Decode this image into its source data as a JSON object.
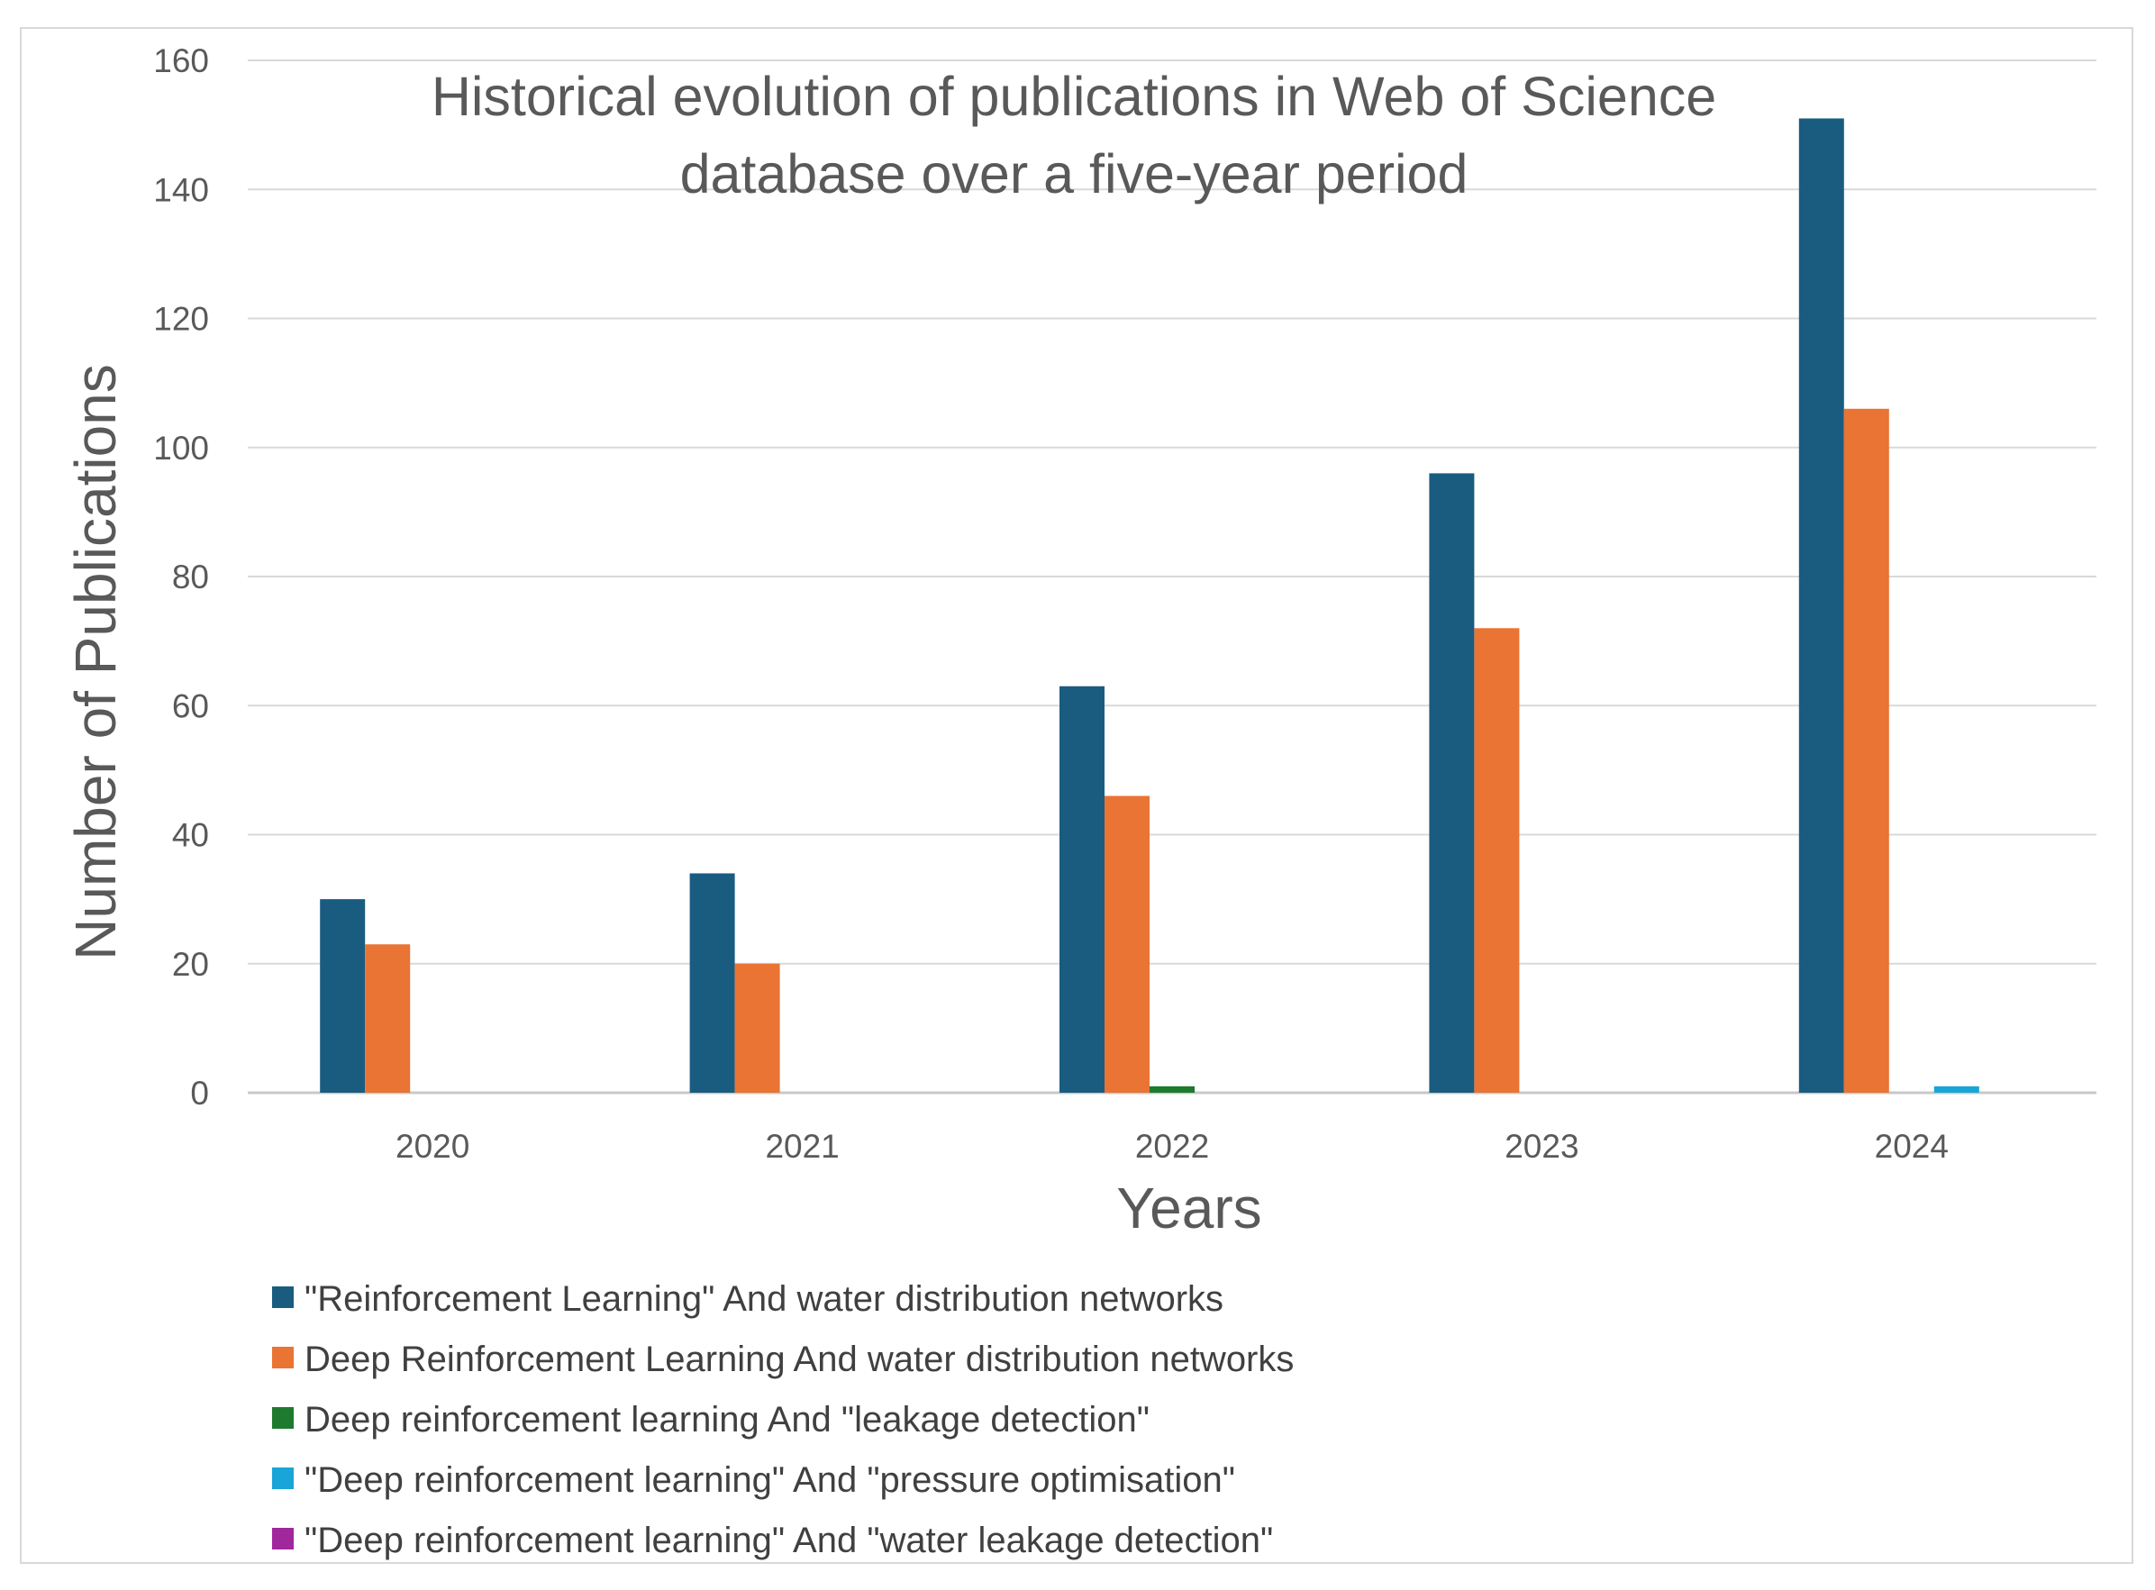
{
  "chart_data": {
    "type": "bar",
    "title": "Historical evolution of publications in Web of Science database over a five-year period",
    "title_lines": [
      "Historical evolution of publications in Web of Science",
      "database over a five-year period"
    ],
    "xlabel": "Years",
    "ylabel": "Number of Publications",
    "categories": [
      "2020",
      "2021",
      "2022",
      "2023",
      "2024"
    ],
    "ylim": [
      0,
      160
    ],
    "yticks": [
      0,
      20,
      40,
      60,
      80,
      100,
      120,
      140,
      160
    ],
    "grid": true,
    "legend_position": "bottom",
    "series": [
      {
        "name": "\"Reinforcement Learning\" And water distribution networks",
        "color": "#1a5c80",
        "values": [
          30,
          34,
          63,
          96,
          151
        ]
      },
      {
        "name": "Deep Reinforcement Learning And  water distribution networks",
        "color": "#e97434",
        "values": [
          23,
          20,
          46,
          72,
          106
        ]
      },
      {
        "name": "Deep reinforcement learning And \"leakage detection\"",
        "color": "#1e7a2e",
        "values": [
          0,
          0,
          1,
          0,
          0
        ]
      },
      {
        "name": "\"Deep reinforcement learning\" And \"pressure optimisation\"",
        "color": "#1aa5d8",
        "values": [
          0,
          0,
          0,
          0,
          1
        ]
      },
      {
        "name": "\"Deep reinforcement learning\" And \"water leakage detection\"",
        "color": "#a1279c",
        "values": [
          0,
          0,
          0,
          0,
          0
        ]
      }
    ]
  }
}
